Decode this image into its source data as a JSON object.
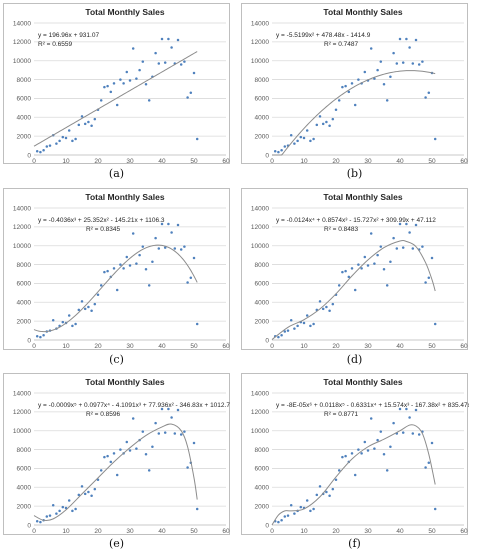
{
  "chart_data": [
    {
      "label": "(a)",
      "type": "scatter",
      "title": "Total Monthly Sales",
      "equation": "y = 196.96x + 931.07",
      "r2": "R² = 0.6559",
      "fit": {
        "kind": "poly",
        "coef": [
          931.07,
          196.96
        ],
        "xmax": 51
      },
      "xlim": [
        0,
        60
      ],
      "ylim": [
        0,
        14000
      ],
      "xticks": [
        0,
        10,
        20,
        30,
        40,
        50,
        60
      ],
      "yticks": [
        0,
        2000,
        4000,
        6000,
        8000,
        10000,
        12000,
        14000
      ],
      "x": [
        1,
        2,
        3,
        4,
        5,
        6,
        7,
        8,
        9,
        10,
        11,
        12,
        13,
        14,
        15,
        16,
        17,
        18,
        19,
        20,
        21,
        22,
        23,
        24,
        25,
        26,
        27,
        28,
        29,
        30,
        31,
        32,
        33,
        34,
        35,
        36,
        37,
        38,
        39,
        40,
        41,
        42,
        43,
        44,
        45,
        46,
        47,
        48,
        49,
        50,
        51
      ],
      "y": [
        400,
        300,
        500,
        900,
        1000,
        2100,
        1200,
        1500,
        1900,
        1800,
        2600,
        1500,
        1700,
        3200,
        4100,
        3300,
        3500,
        3100,
        3800,
        4800,
        5800,
        7200,
        7300,
        6700,
        7600,
        5300,
        8000,
        7600,
        8800,
        7900,
        11300,
        8100,
        9000,
        9900,
        7500,
        5800,
        8300,
        10800,
        9700,
        12300,
        9800,
        12300,
        11400,
        9700,
        12200,
        9600,
        9900,
        6100,
        6600,
        8700,
        1700
      ]
    },
    {
      "label": "(b)",
      "type": "scatter",
      "title": "Total Monthly Sales",
      "equation": "y = -5.5199x² + 478.48x - 1414.9",
      "r2": "R² = 0.7487",
      "fit": {
        "kind": "poly",
        "coef": [
          -1414.9,
          478.48,
          -5.5199
        ],
        "xmax": 51
      },
      "xlim": [
        0,
        60
      ],
      "ylim": [
        0,
        14000
      ],
      "xticks": [
        0,
        10,
        20,
        30,
        40,
        50,
        60
      ],
      "yticks": [
        0,
        2000,
        4000,
        6000,
        8000,
        10000,
        12000,
        14000
      ],
      "x": [
        1,
        2,
        3,
        4,
        5,
        6,
        7,
        8,
        9,
        10,
        11,
        12,
        13,
        14,
        15,
        16,
        17,
        18,
        19,
        20,
        21,
        22,
        23,
        24,
        25,
        26,
        27,
        28,
        29,
        30,
        31,
        32,
        33,
        34,
        35,
        36,
        37,
        38,
        39,
        40,
        41,
        42,
        43,
        44,
        45,
        46,
        47,
        48,
        49,
        50,
        51
      ],
      "y": [
        400,
        300,
        500,
        900,
        1000,
        2100,
        1200,
        1500,
        1900,
        1800,
        2600,
        1500,
        1700,
        3200,
        4100,
        3300,
        3500,
        3100,
        3800,
        4800,
        5800,
        7200,
        7300,
        6700,
        7600,
        5300,
        8000,
        7600,
        8800,
        7900,
        11300,
        8100,
        9000,
        9900,
        7500,
        5800,
        8300,
        10800,
        9700,
        12300,
        9800,
        12300,
        11400,
        9700,
        12200,
        9600,
        9900,
        6100,
        6600,
        8700,
        1700
      ]
    },
    {
      "label": "(c)",
      "type": "scatter",
      "title": "Total Monthly Sales",
      "equation": "y = -0.4036x³ + 25.352x² - 145.21x + 1106.3",
      "r2": "R² = 0.8345",
      "fit": {
        "kind": "poly",
        "coef": [
          1106.3,
          -145.21,
          25.352,
          -0.4036
        ],
        "xmax": 51
      },
      "xlim": [
        0,
        60
      ],
      "ylim": [
        0,
        14000
      ],
      "xticks": [
        0,
        10,
        20,
        30,
        40,
        50,
        60
      ],
      "yticks": [
        0,
        2000,
        4000,
        6000,
        8000,
        10000,
        12000,
        14000
      ],
      "x": [
        1,
        2,
        3,
        4,
        5,
        6,
        7,
        8,
        9,
        10,
        11,
        12,
        13,
        14,
        15,
        16,
        17,
        18,
        19,
        20,
        21,
        22,
        23,
        24,
        25,
        26,
        27,
        28,
        29,
        30,
        31,
        32,
        33,
        34,
        35,
        36,
        37,
        38,
        39,
        40,
        41,
        42,
        43,
        44,
        45,
        46,
        47,
        48,
        49,
        50,
        51
      ],
      "y": [
        400,
        300,
        500,
        900,
        1000,
        2100,
        1200,
        1500,
        1900,
        1800,
        2600,
        1500,
        1700,
        3200,
        4100,
        3300,
        3500,
        3100,
        3800,
        4800,
        5800,
        7200,
        7300,
        6700,
        7600,
        5300,
        8000,
        7600,
        8800,
        7900,
        11300,
        8100,
        9000,
        9900,
        7500,
        5800,
        8300,
        10800,
        9700,
        12300,
        9800,
        12300,
        11400,
        9700,
        12200,
        9600,
        9900,
        6100,
        6600,
        8700,
        1700
      ]
    },
    {
      "label": "(d)",
      "type": "scatter",
      "title": "Total Monthly Sales",
      "equation": "y = -0.0124x⁴ + 0.8574x³ - 15.727x² + 309.99x + 47.112",
      "r2": "R² = 0.8483",
      "fit": {
        "kind": "hump",
        "pts": [
          [
            0,
            47
          ],
          [
            5,
            1350
          ],
          [
            10,
            2150
          ],
          [
            15,
            3300
          ],
          [
            20,
            4900
          ],
          [
            25,
            6800
          ],
          [
            30,
            8500
          ],
          [
            35,
            9800
          ],
          [
            40,
            10500
          ],
          [
            42,
            10450
          ],
          [
            45,
            9900
          ],
          [
            48,
            8200
          ],
          [
            50,
            6400
          ],
          [
            51,
            5200
          ]
        ]
      },
      "xlim": [
        0,
        60
      ],
      "ylim": [
        0,
        14000
      ],
      "xticks": [
        0,
        10,
        20,
        30,
        40,
        50,
        60
      ],
      "yticks": [
        0,
        2000,
        4000,
        6000,
        8000,
        10000,
        12000,
        14000
      ],
      "x": [
        1,
        2,
        3,
        4,
        5,
        6,
        7,
        8,
        9,
        10,
        11,
        12,
        13,
        14,
        15,
        16,
        17,
        18,
        19,
        20,
        21,
        22,
        23,
        24,
        25,
        26,
        27,
        28,
        29,
        30,
        31,
        32,
        33,
        34,
        35,
        36,
        37,
        38,
        39,
        40,
        41,
        42,
        43,
        44,
        45,
        46,
        47,
        48,
        49,
        50,
        51
      ],
      "y": [
        400,
        300,
        500,
        900,
        1000,
        2100,
        1200,
        1500,
        1900,
        1800,
        2600,
        1500,
        1700,
        3200,
        4100,
        3300,
        3500,
        3100,
        3800,
        4800,
        5800,
        7200,
        7300,
        6700,
        7600,
        5300,
        8000,
        7600,
        8800,
        7900,
        11300,
        8100,
        9000,
        9900,
        7500,
        5800,
        8300,
        10800,
        9700,
        12300,
        9800,
        12300,
        11400,
        9700,
        12200,
        9600,
        9900,
        6100,
        6600,
        8700,
        1700
      ]
    },
    {
      "label": "(e)",
      "type": "scatter",
      "title": "Total Monthly Sales",
      "equation": "y = -0.0009x⁵ + 0.0977x⁴ - 4.1091x³ + 77.936x² - 346.83x + 1012.7",
      "r2": "R² = 0.8596",
      "fit": {
        "kind": "hump",
        "pts": [
          [
            0,
            1000
          ],
          [
            3,
            500
          ],
          [
            6,
            650
          ],
          [
            10,
            1600
          ],
          [
            15,
            3300
          ],
          [
            20,
            5000
          ],
          [
            25,
            6700
          ],
          [
            30,
            8200
          ],
          [
            35,
            9500
          ],
          [
            40,
            10400
          ],
          [
            43,
            10700
          ],
          [
            46,
            10000
          ],
          [
            48,
            8300
          ],
          [
            50,
            5000
          ],
          [
            51,
            2700
          ]
        ]
      },
      "xlim": [
        0,
        60
      ],
      "ylim": [
        0,
        14000
      ],
      "xticks": [
        0,
        10,
        20,
        30,
        40,
        50,
        60
      ],
      "yticks": [
        0,
        2000,
        4000,
        6000,
        8000,
        10000,
        12000,
        14000
      ],
      "x": [
        1,
        2,
        3,
        4,
        5,
        6,
        7,
        8,
        9,
        10,
        11,
        12,
        13,
        14,
        15,
        16,
        17,
        18,
        19,
        20,
        21,
        22,
        23,
        24,
        25,
        26,
        27,
        28,
        29,
        30,
        31,
        32,
        33,
        34,
        35,
        36,
        37,
        38,
        39,
        40,
        41,
        42,
        43,
        44,
        45,
        46,
        47,
        48,
        49,
        50,
        51
      ],
      "y": [
        400,
        300,
        500,
        900,
        1000,
        2100,
        1200,
        1500,
        1900,
        1800,
        2600,
        1500,
        1700,
        3200,
        4100,
        3300,
        3500,
        3100,
        3800,
        4800,
        5800,
        7200,
        7300,
        6700,
        7600,
        5300,
        8000,
        7600,
        8800,
        7900,
        11300,
        8100,
        9000,
        9900,
        7500,
        5800,
        8300,
        10800,
        9700,
        12300,
        9800,
        12300,
        11400,
        9700,
        12200,
        9600,
        9900,
        6100,
        6600,
        8700,
        1700
      ]
    },
    {
      "label": "(f)",
      "type": "scatter",
      "title": "Total Monthly Sales",
      "equation": "y = -8E-05x⁶ + 0.0118x⁵ - 0.6331x⁴ + 15.574x³ - 167.38x² + 835.47x - 148.07",
      "r2": "R² = 0.8771",
      "fit": {
        "kind": "hump",
        "pts": [
          [
            0,
            -150
          ],
          [
            2,
            1050
          ],
          [
            4,
            1500
          ],
          [
            6,
            1500
          ],
          [
            10,
            1700
          ],
          [
            15,
            3000
          ],
          [
            20,
            5100
          ],
          [
            25,
            7000
          ],
          [
            30,
            8300
          ],
          [
            35,
            9100
          ],
          [
            40,
            10000
          ],
          [
            43,
            10600
          ],
          [
            45,
            10500
          ],
          [
            47,
            9700
          ],
          [
            49,
            7500
          ],
          [
            51,
            4300
          ]
        ]
      },
      "xlim": [
        0,
        60
      ],
      "ylim": [
        0,
        14000
      ],
      "xticks": [
        0,
        10,
        20,
        30,
        40,
        50,
        60
      ],
      "yticks": [
        0,
        2000,
        4000,
        6000,
        8000,
        10000,
        12000,
        14000
      ],
      "x": [
        1,
        2,
        3,
        4,
        5,
        6,
        7,
        8,
        9,
        10,
        11,
        12,
        13,
        14,
        15,
        16,
        17,
        18,
        19,
        20,
        21,
        22,
        23,
        24,
        25,
        26,
        27,
        28,
        29,
        30,
        31,
        32,
        33,
        34,
        35,
        36,
        37,
        38,
        39,
        40,
        41,
        42,
        43,
        44,
        45,
        46,
        47,
        48,
        49,
        50,
        51
      ],
      "y": [
        400,
        300,
        500,
        900,
        1000,
        2100,
        1200,
        1500,
        1900,
        1800,
        2600,
        1500,
        1700,
        3200,
        4100,
        3300,
        3500,
        3100,
        3800,
        4800,
        5800,
        7200,
        7300,
        6700,
        7600,
        5300,
        8000,
        7600,
        8800,
        7900,
        11300,
        8100,
        9000,
        9900,
        7500,
        5800,
        8300,
        10800,
        9700,
        12300,
        9800,
        12300,
        11400,
        9700,
        12200,
        9600,
        9900,
        6100,
        6600,
        8700,
        1700
      ]
    }
  ],
  "colors": {
    "points": "#4f81bd",
    "trendline": "#8c8c8c",
    "gridline": "#d9d9d9"
  }
}
